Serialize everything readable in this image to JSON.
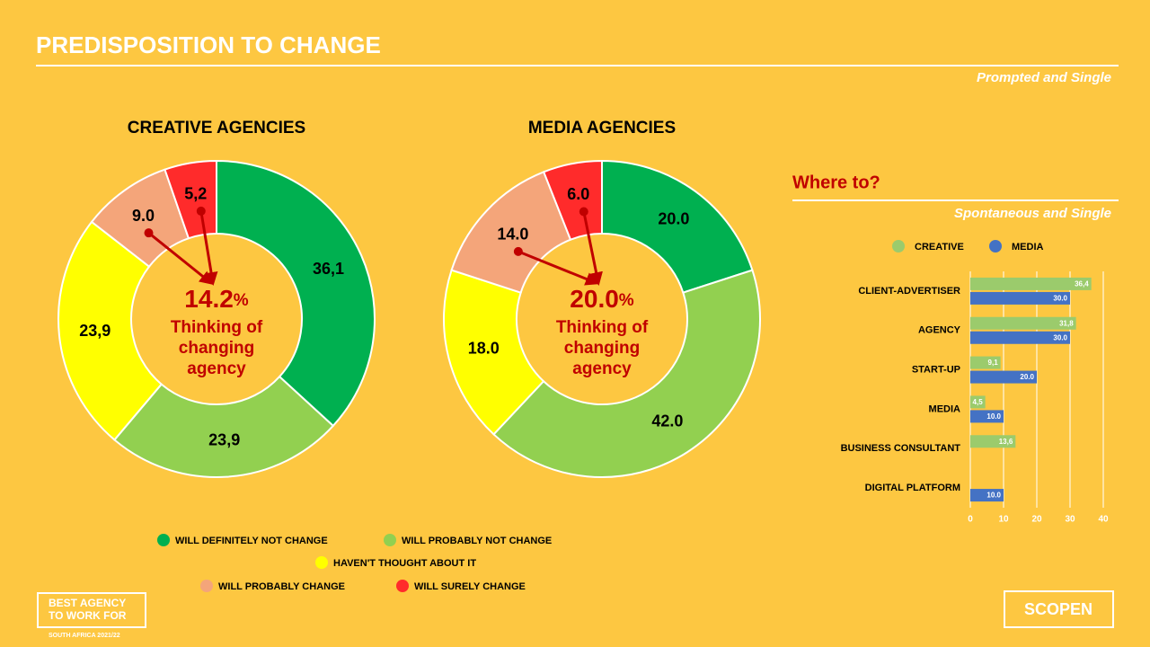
{
  "header": {
    "title": "PREDISPOSITION TO CHANGE",
    "subtitle": "Prompted and Single"
  },
  "chart_data": [
    {
      "type": "pie",
      "title": "CREATIVE AGENCIES",
      "categories": [
        "WILL DEFINITELY NOT CHANGE",
        "WILL PROBABLY NOT CHANGE",
        "HAVEN'T THOUGHT ABOUT IT",
        "WILL PROBABLY CHANGE",
        "WILL SURELY CHANGE"
      ],
      "colors": [
        "#00b050",
        "#92d050",
        "#ffff00",
        "#f4a57a",
        "#ff2b2b"
      ],
      "values": [
        36.1,
        23.9,
        23.9,
        9.0,
        5.2
      ],
      "value_labels": [
        "36,1",
        "23,9",
        "23,9",
        "9.0",
        "5,2"
      ],
      "center": {
        "value": "14.2",
        "unit": "%",
        "text": [
          "Thinking of",
          "changing",
          "agency"
        ]
      }
    },
    {
      "type": "pie",
      "title": "MEDIA AGENCIES",
      "colors": [
        "#00b050",
        "#92d050",
        "#ffff00",
        "#f4a57a",
        "#ff2b2b"
      ],
      "values": [
        20.0,
        42.0,
        18.0,
        14.0,
        6.0
      ],
      "value_labels": [
        "20.0",
        "42.0",
        "18.0",
        "14.0",
        "6.0"
      ],
      "center": {
        "value": "20.0",
        "unit": "%",
        "text": [
          "Thinking of",
          "changing",
          "agency"
        ]
      }
    },
    {
      "type": "bar",
      "orientation": "horizontal",
      "title": "Where to?",
      "subtitle": "Spontaneous and Single",
      "categories": [
        "CLIENT-ADVERTISER",
        "AGENCY",
        "START-UP",
        "MEDIA",
        "BUSINESS CONSULTANT",
        "DIGITAL PLATFORM"
      ],
      "series": [
        {
          "name": "CREATIVE",
          "color": "#9bcb6c",
          "values": [
            36.4,
            31.8,
            9.1,
            4.5,
            13.6,
            null
          ],
          "value_labels": [
            "36,4",
            "31,8",
            "9,1",
            "4,5",
            "13,6",
            null
          ]
        },
        {
          "name": "MEDIA",
          "color": "#4472c4",
          "values": [
            30.0,
            30.0,
            20.0,
            10.0,
            null,
            10.0
          ],
          "value_labels": [
            "30.0",
            "30.0",
            "20.0",
            "10.0",
            null,
            "10.0"
          ]
        }
      ],
      "xlim": [
        0,
        40
      ],
      "xticks": [
        0,
        10,
        20,
        30,
        40
      ],
      "grid": true
    }
  ],
  "footer": {
    "logo": [
      "BEST AGENCY",
      "TO WORK FOR"
    ],
    "logo_sub": "SOUTH AFRICA 2021/22",
    "brand": "SCOPEN"
  }
}
